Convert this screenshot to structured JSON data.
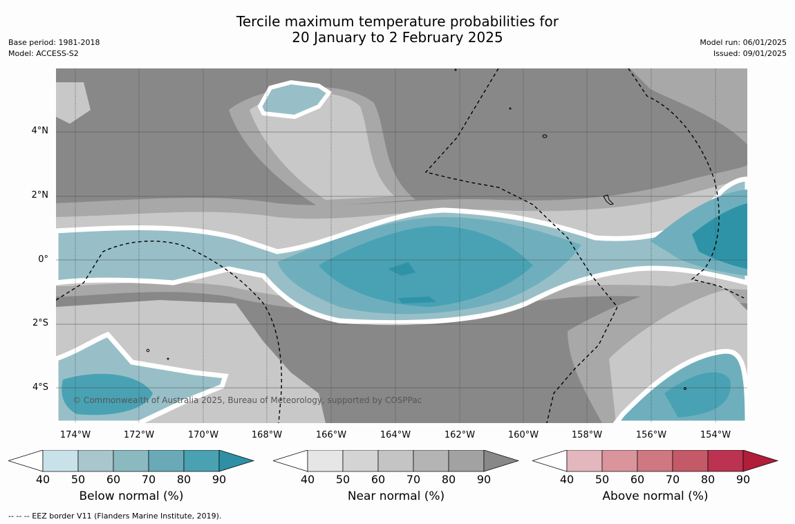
{
  "title": {
    "line1": "Tercile maximum temperature probabilities for",
    "line2": "20 January to 2 February 2025"
  },
  "meta_left": {
    "base_period": "Base period: 1981-2018",
    "model": "Model: ACCESS-S2"
  },
  "meta_right": {
    "model_run": "Model run: 06/01/2025",
    "issued": "Issued: 09/01/2025"
  },
  "map": {
    "lat_labels": [
      "4°N",
      "2°N",
      "0°",
      "2°S",
      "4°S"
    ],
    "lon_labels": [
      "174°W",
      "172°W",
      "170°W",
      "168°W",
      "166°W",
      "164°W",
      "162°W",
      "160°W",
      "158°W",
      "156°W",
      "154°W"
    ],
    "copyright": "© Commonwealth of Australia 2025, Bureau of Meteorology, supported by COSPPac",
    "colors": {
      "grey_dark": "#888888",
      "grey_mid": "#a8a8a8",
      "grey_light": "#c8c8c8",
      "grey_pale": "#d9d9d9",
      "teal_deep": "#2f93a8",
      "teal_mid": "#49a2b4",
      "teal_light": "#6fafbd",
      "teal_pale": "#98bfc7"
    }
  },
  "colorbars": [
    {
      "title": "Below normal (%)",
      "ticks": [
        "40",
        "50",
        "60",
        "70",
        "80",
        "90"
      ],
      "colors": [
        "#ffffff",
        "#c9e2e9",
        "#a8c6cb",
        "#8bb9c0",
        "#6aaab7",
        "#4aa1b2",
        "#2e8fa5"
      ]
    },
    {
      "title": "Near normal (%)",
      "ticks": [
        "40",
        "50",
        "60",
        "70",
        "80",
        "90"
      ],
      "colors": [
        "#ffffff",
        "#e6e6e6",
        "#d4d4d4",
        "#c4c4c4",
        "#b4b4b4",
        "#a2a2a2",
        "#888888"
      ]
    },
    {
      "title": "Above normal (%)",
      "ticks": [
        "40",
        "50",
        "60",
        "70",
        "80",
        "90"
      ],
      "colors": [
        "#ffffff",
        "#e3b7bd",
        "#d9949c",
        "#cf7882",
        "#c45a68",
        "#bb3350",
        "#b01e3a"
      ]
    }
  ],
  "footer": "--  --  -- EEZ border V11 (Flanders Marine Institute, 2019)."
}
